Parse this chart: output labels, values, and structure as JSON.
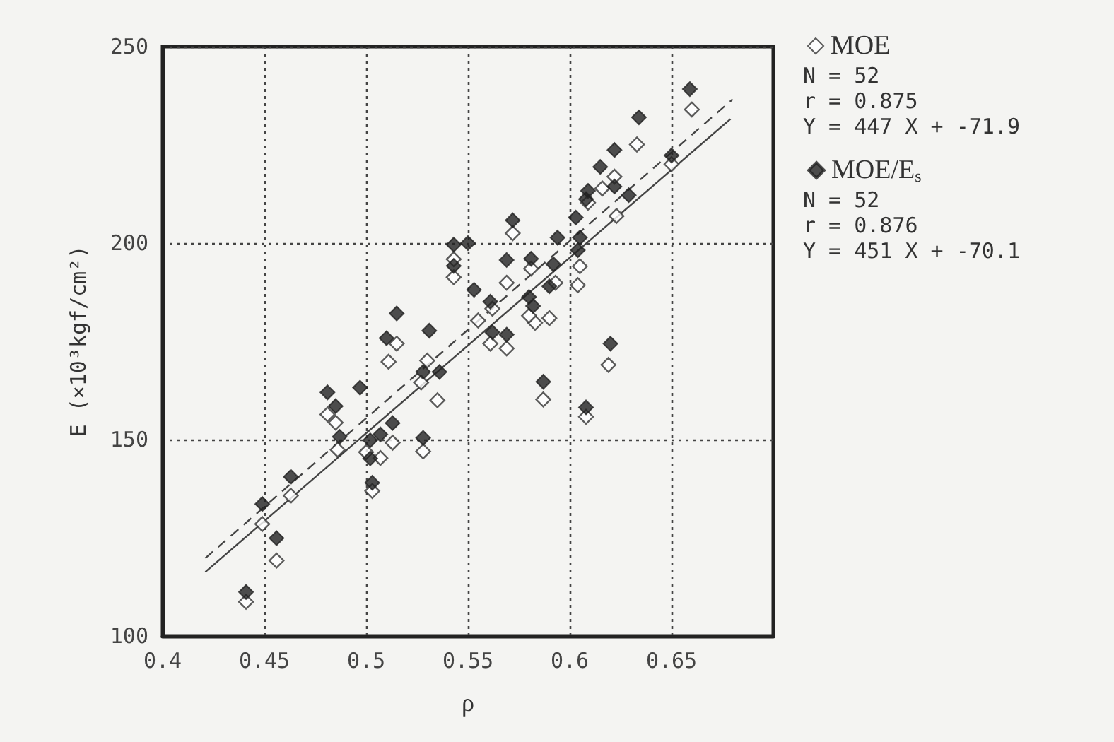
{
  "chart_data": {
    "type": "scatter",
    "xlabel": "ρ",
    "ylabel": "E (×10³kgf/cm²)",
    "xlim": [
      0.4,
      0.7
    ],
    "xticks": [
      0.4,
      0.45,
      0.5,
      0.55,
      0.6,
      0.65
    ],
    "ylim": [
      100,
      250
    ],
    "yticks": [
      100,
      150,
      200,
      250
    ],
    "grid": true,
    "legend": "right",
    "annotations": [
      "N = 52",
      "r = 0.875",
      "Y = 447 X + -71.9",
      "N = 52",
      "r = 0.876",
      "Y = 451 X + -70.1"
    ],
    "series": [
      {
        "name": "MOE",
        "color": "#333333",
        "marker": "diamond",
        "x": [
          0.66,
          0.633,
          0.65,
          0.622,
          0.616,
          0.623,
          0.609,
          0.605,
          0.604,
          0.593,
          0.59,
          0.583,
          0.58,
          0.581,
          0.569,
          0.572,
          0.543,
          0.543,
          0.555,
          0.562,
          0.561,
          0.569,
          0.515,
          0.511,
          0.53,
          0.527,
          0.535,
          0.587,
          0.619,
          0.608,
          0.481,
          0.485,
          0.486,
          0.507,
          0.513,
          0.528,
          0.503,
          0.463,
          0.449,
          0.456,
          0.441,
          0.5
        ],
        "values": [
          234.0,
          225.1,
          220.1,
          216.9,
          213.9,
          206.9,
          210.3,
          194.1,
          189.3,
          189.9,
          180.9,
          179.7,
          181.5,
          193.5,
          189.9,
          202.5,
          195.9,
          191.3,
          180.3,
          183.3,
          174.4,
          173.2,
          174.4,
          169.8,
          170.1,
          164.5,
          160.0,
          160.2,
          169.0,
          155.8,
          156.4,
          154.3,
          147.4,
          145.3,
          149.2,
          147.0,
          136.9,
          135.7,
          128.5,
          119.2,
          108.7,
          146.8
        ]
      },
      {
        "name": "MOE/E$_{s}$",
        "color": "#222222",
        "marker": "diamond",
        "x": [
          0.659,
          0.634,
          0.65,
          0.622,
          0.615,
          0.622,
          0.629,
          0.609,
          0.608,
          0.603,
          0.594,
          0.605,
          0.604,
          0.592,
          0.581,
          0.569,
          0.572,
          0.55,
          0.543,
          0.543,
          0.553,
          0.561,
          0.58,
          0.582,
          0.515,
          0.531,
          0.51,
          0.562,
          0.569,
          0.62,
          0.528,
          0.536,
          0.587,
          0.608,
          0.481,
          0.497,
          0.485,
          0.487,
          0.507,
          0.502,
          0.513,
          0.528,
          0.502,
          0.503,
          0.449,
          0.463,
          0.456,
          0.441,
          0.59
        ],
        "values": [
          239.2,
          232.0,
          222.3,
          223.7,
          219.4,
          214.4,
          212.2,
          213.3,
          211.2,
          206.5,
          201.4,
          201.4,
          198.2,
          194.6,
          196.0,
          195.7,
          205.8,
          200.0,
          199.6,
          194.2,
          188.1,
          185.1,
          186.3,
          184.0,
          182.1,
          177.7,
          175.8,
          177.3,
          176.7,
          174.4,
          167.2,
          167.2,
          164.7,
          158.2,
          162.0,
          163.2,
          158.5,
          150.7,
          151.3,
          149.8,
          154.2,
          150.4,
          145.2,
          139.0,
          133.6,
          140.5,
          124.9,
          111.2,
          189.0
        ]
      },
      {
        "type": "line",
        "marker": "none",
        "line_style": "solid",
        "color": "#444444",
        "x": [
          0.421,
          0.679
        ],
        "values": [
          116.3,
          231.6
        ]
      },
      {
        "type": "line",
        "marker": "none",
        "line_style": "dashed",
        "color": "#444444",
        "x": [
          0.421,
          0.68
        ],
        "values": [
          119.8,
          236.6
        ]
      }
    ]
  }
}
